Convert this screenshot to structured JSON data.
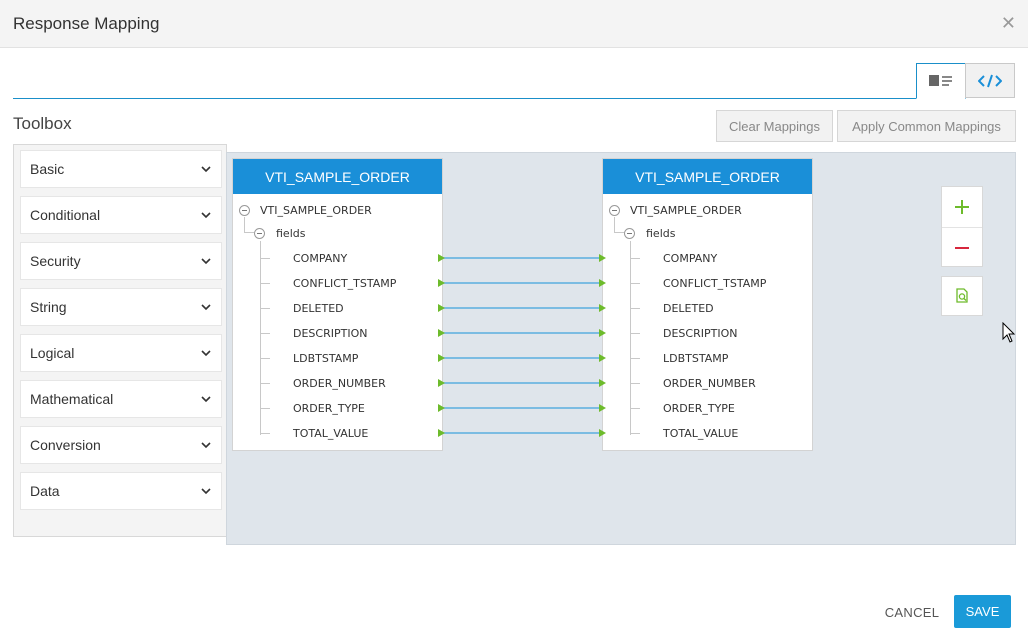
{
  "dialog": {
    "title": "Response Mapping",
    "close_icon": "close-icon"
  },
  "view_toggle": {
    "visual_icon": "visual-view-icon",
    "code_icon": "code-view-icon"
  },
  "toolbox": {
    "title": "Toolbox",
    "items": [
      {
        "label": "Basic"
      },
      {
        "label": "Conditional"
      },
      {
        "label": "Security"
      },
      {
        "label": "String"
      },
      {
        "label": "Logical"
      },
      {
        "label": "Mathematical"
      },
      {
        "label": "Conversion"
      },
      {
        "label": "Data"
      }
    ]
  },
  "actions": {
    "clear_label": "Clear Mappings",
    "apply_label": "Apply Common Mappings"
  },
  "source": {
    "header": "VTI_SAMPLE_ORDER",
    "root": "VTI_SAMPLE_ORDER",
    "group": "fields",
    "fields": [
      "COMPANY",
      "CONFLICT_TSTAMP",
      "DELETED",
      "DESCRIPTION",
      "LDBTSTAMP",
      "ORDER_NUMBER",
      "ORDER_TYPE",
      "TOTAL_VALUE"
    ]
  },
  "target": {
    "header": "VTI_SAMPLE_ORDER",
    "root": "VTI_SAMPLE_ORDER",
    "group": "fields",
    "fields": [
      "COMPANY",
      "CONFLICT_TSTAMP",
      "DELETED",
      "DESCRIPTION",
      "LDBTSTAMP",
      "ORDER_NUMBER",
      "ORDER_TYPE",
      "TOTAL_VALUE"
    ]
  },
  "zoom": {
    "in_icon": "zoom-in-icon",
    "out_icon": "zoom-out-icon",
    "fit_icon": "zoom-fit-icon"
  },
  "footer": {
    "cancel_label": "CANCEL",
    "save_label": "SAVE"
  },
  "colors": {
    "accent": "#1a8fd8",
    "connector": "#5aaee0",
    "connector_arrow": "#6dbb2b",
    "zoom_in": "#6dbb2b",
    "zoom_out": "#d7263d"
  }
}
